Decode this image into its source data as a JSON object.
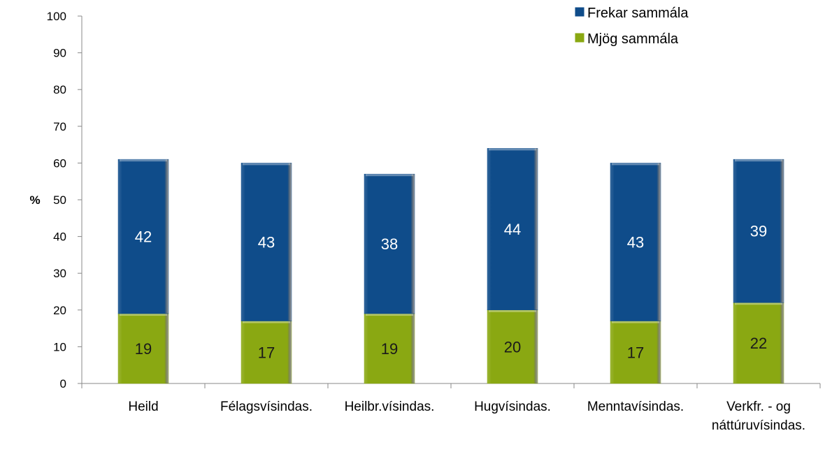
{
  "chart_data": {
    "type": "bar",
    "stacked": true,
    "categories": [
      "Heild",
      "Félagsvísindas.",
      "Heilbr.vísindas.",
      "Hugvísindas.",
      "Menntavísindas.",
      "Verkfr. - og\nnáttúruvísindas."
    ],
    "series": [
      {
        "name": "Mjög sammála",
        "color": "#8aa812",
        "label_color": "#1a1a1a",
        "values": [
          19,
          17,
          19,
          20,
          17,
          22
        ]
      },
      {
        "name": "Frekar sammála",
        "color": "#0f4c8a",
        "label_color": "#ffffff",
        "values": [
          42,
          43,
          38,
          44,
          43,
          39
        ]
      }
    ],
    "legend_order": [
      "Frekar sammála",
      "Mjög sammála"
    ],
    "legend_position": "top-right",
    "ylabel": "%",
    "ylim": [
      0,
      100
    ],
    "yticks": [
      0,
      10,
      20,
      30,
      40,
      50,
      60,
      70,
      80,
      90,
      100
    ],
    "grid": false
  }
}
